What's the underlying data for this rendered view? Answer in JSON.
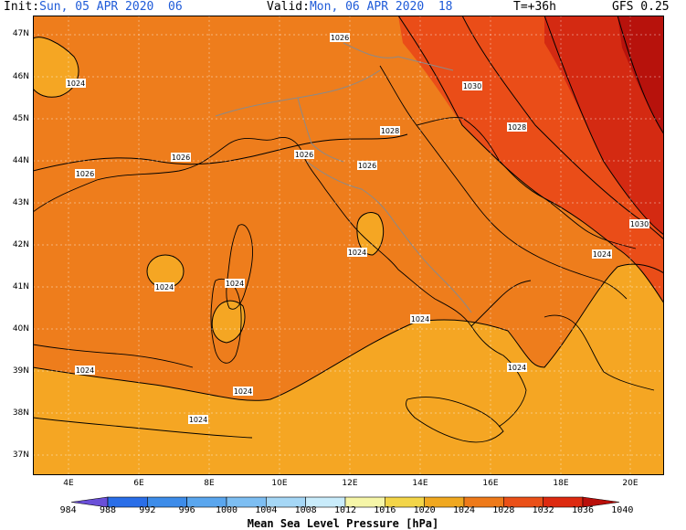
{
  "header": {
    "init_label": "Init:",
    "init_value": "Sun, 05 APR 2020  06",
    "valid_label": "Valid:",
    "valid_value": "Mon, 06 APR 2020  18",
    "lead": "T=+36h",
    "model": "GFS 0.25"
  },
  "axes": {
    "lat_labels": [
      "47N",
      "46N",
      "45N",
      "44N",
      "43N",
      "42N",
      "41N",
      "40N",
      "39N",
      "38N",
      "37N"
    ],
    "lon_labels": [
      "4E",
      "6E",
      "8E",
      "10E",
      "12E",
      "14E",
      "16E",
      "18E",
      "20E"
    ]
  },
  "isobar_labels": [
    "1024",
    "1026",
    "1026",
    "1026",
    "1028",
    "1030",
    "1028",
    "1026",
    "1026",
    "1030",
    "1024",
    "1024",
    "1024",
    "1024",
    "1024",
    "1024",
    "1024",
    "1024",
    "1024",
    "1024"
  ],
  "legend": {
    "title": "Mean Sea Level Pressure [hPa]",
    "ticks": [
      "984",
      "988",
      "992",
      "996",
      "1000",
      "1004",
      "1008",
      "1012",
      "1016",
      "1020",
      "1024",
      "1028",
      "1032",
      "1036",
      "1040"
    ],
    "colors": [
      "#6a4fd8",
      "#2a6ee8",
      "#3d8ce9",
      "#5aa6ee",
      "#7dbef2",
      "#a5d7f6",
      "#c9ecfb",
      "#f6f6a8",
      "#f3d548",
      "#f0a820",
      "#ee7a1a",
      "#ea5018",
      "#dd2a10",
      "#b90f0a"
    ]
  },
  "colors": {
    "p1020": "#f5a623",
    "p1024": "#ee7d1c",
    "p1028": "#ea4d18",
    "p1032": "#d42a12",
    "p1036": "#b7120c",
    "coast": "#000000",
    "border": "#8a8a8a",
    "grid": "#cccccc"
  }
}
